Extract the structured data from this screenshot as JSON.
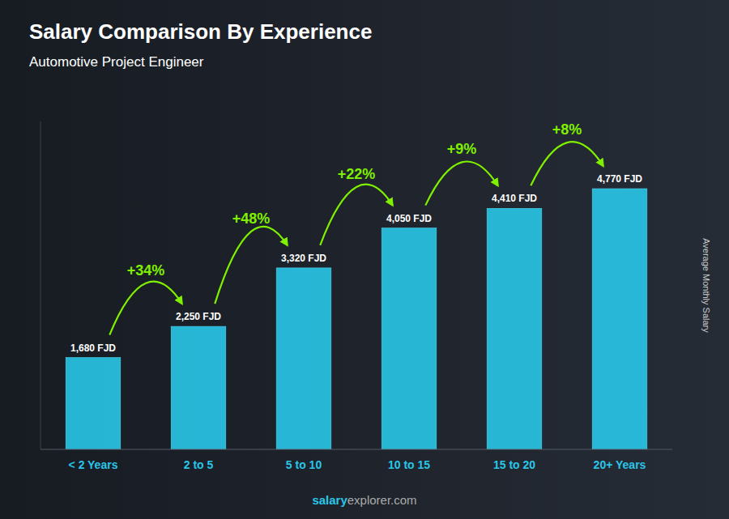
{
  "chart_data": {
    "type": "bar",
    "title": "Salary Comparison By Experience",
    "subtitle": "Automotive Project Engineer",
    "categories": [
      "< 2 Years",
      "2 to 5",
      "5 to 10",
      "10 to 15",
      "15 to 20",
      "20+ Years"
    ],
    "values": [
      1680,
      2250,
      3320,
      4050,
      4410,
      4770
    ],
    "value_labels": [
      "1,680 FJD",
      "2,250 FJD",
      "3,320 FJD",
      "4,050 FJD",
      "4,410 FJD",
      "4,770 FJD"
    ],
    "data_labels": true,
    "color": "#29c6e8",
    "ylabel": "Average Monthly Salary",
    "ylim": [
      0,
      6000
    ],
    "tick_labels": "x",
    "grid": false,
    "annotations": [
      {
        "text": "+34%",
        "from": "< 2 Years",
        "to": "2 to 5",
        "color": "#7ff000"
      },
      {
        "text": "+48%",
        "from": "2 to 5",
        "to": "5 to 10",
        "color": "#7ff000"
      },
      {
        "text": "+22%",
        "from": "5 to 10",
        "to": "10 to 15",
        "color": "#7ff000"
      },
      {
        "text": "+9%",
        "from": "10 to 15",
        "to": "15 to 20",
        "color": "#7ff000"
      },
      {
        "text": "+8%",
        "from": "15 to 20",
        "to": "20+ Years",
        "color": "#7ff000"
      }
    ],
    "watermark": [
      "salary",
      "explorer.com"
    ]
  }
}
